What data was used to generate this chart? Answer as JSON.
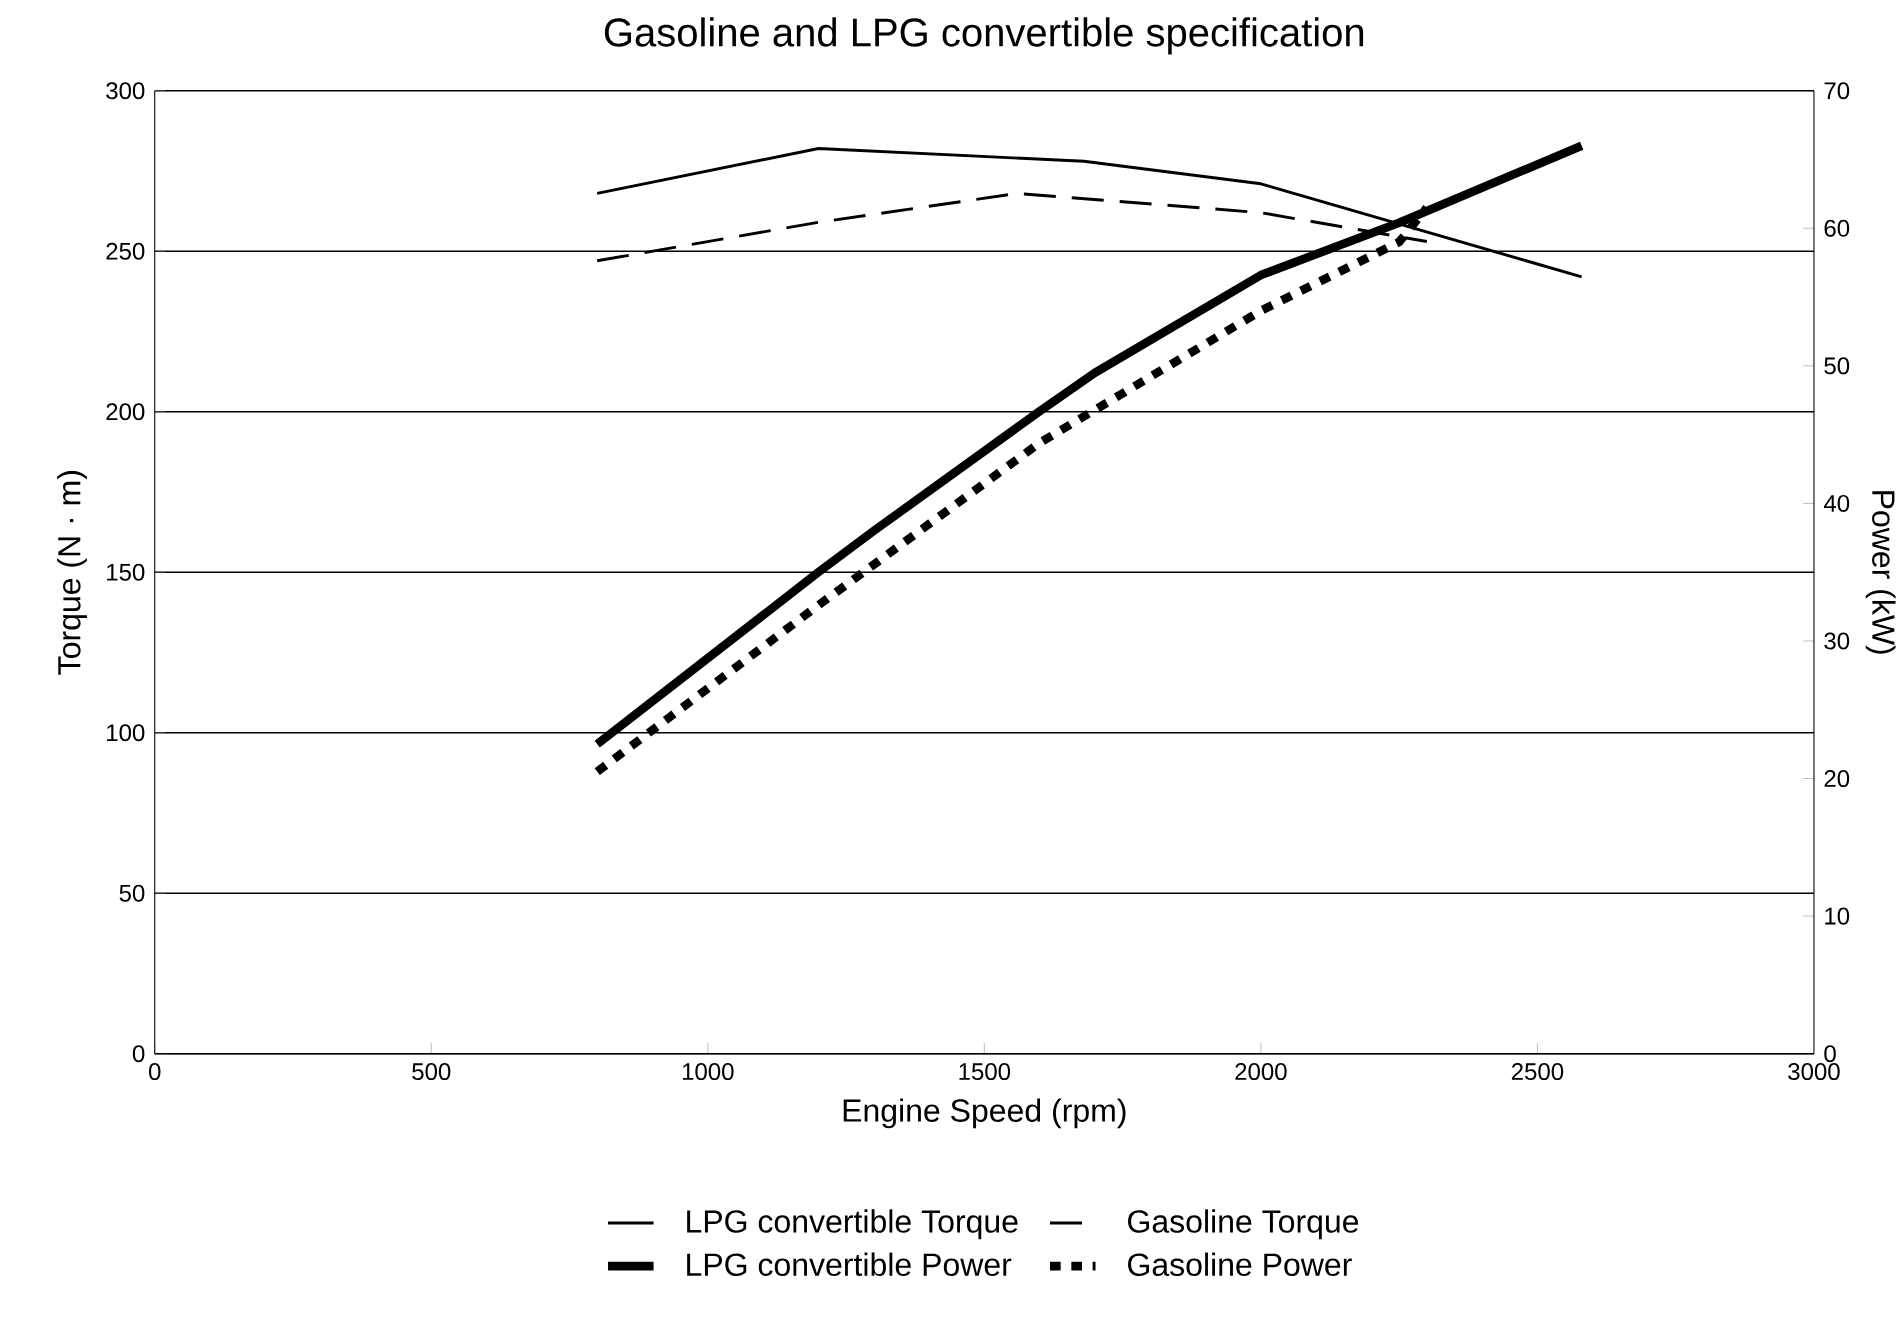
{
  "chart_data": {
    "type": "line",
    "title": "Gasoline and LPG convertible specification",
    "xlabel": "Engine Speed (rpm)",
    "ylabel": "Torque (N · m)",
    "y2label": "Power (kW)",
    "xlim": [
      0,
      3000
    ],
    "xticks": [
      0,
      500,
      1000,
      1500,
      2000,
      2500,
      3000
    ],
    "ylim": [
      0,
      300
    ],
    "yticks": [
      0,
      50,
      100,
      150,
      200,
      250,
      300
    ],
    "y2lim": [
      0,
      70
    ],
    "y2ticks": [
      0,
      10,
      20,
      30,
      40,
      50,
      60,
      70
    ],
    "grid": "y",
    "legend": "bottom",
    "marker": "none",
    "series": [
      {
        "name": "LPG convertible Torque",
        "color": "#000000",
        "line_style": "solid",
        "x": [
          800,
          1200,
          1680,
          2000,
          2580
        ],
        "values": [
          268,
          282,
          278,
          271,
          242
        ]
      },
      {
        "name": "Gasoline Torque",
        "color": "#000000",
        "line_style": "dashed",
        "x": [
          800,
          1200,
          1560,
          2000,
          2300
        ],
        "values": [
          247,
          259,
          268,
          262,
          253
        ]
      },
      {
        "name": "LPG convertible Power",
        "color": "#000000",
        "line_style": "solid",
        "axis": "y2",
        "x": [
          800,
          1200,
          1300,
          1600,
          1700,
          2000,
          2250,
          2580
        ],
        "values": [
          22.5,
          35,
          38,
          46.7,
          49.5,
          56.6,
          60.4,
          66
        ]
      },
      {
        "name": "Gasoline Power",
        "color": "#000000",
        "line_style": "dotted",
        "axis": "y2",
        "x": [
          800,
          1200,
          1600,
          2000,
          2250,
          2300
        ],
        "values": [
          20.5,
          32.6,
          44.4,
          54,
          59,
          61.5
        ]
      }
    ]
  }
}
